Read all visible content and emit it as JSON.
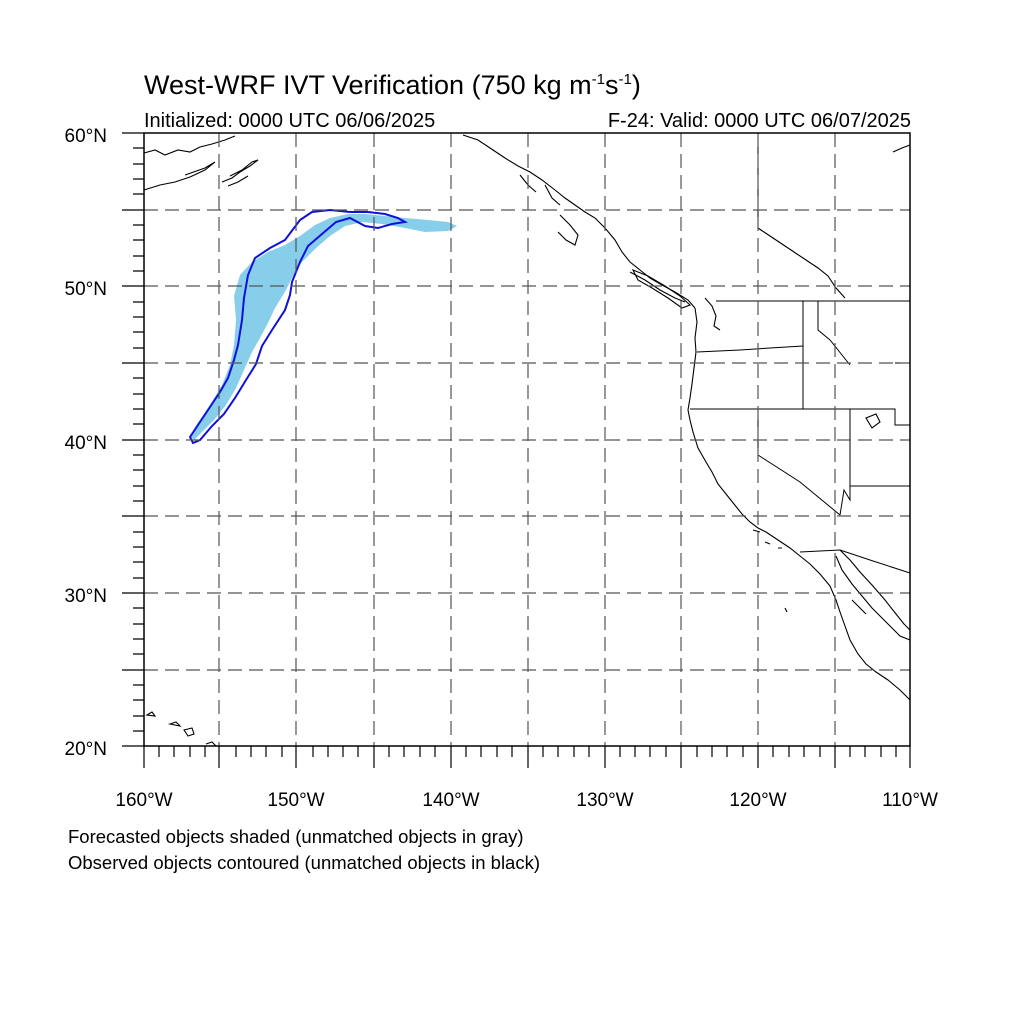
{
  "title": {
    "main": "West-WRF IVT Verification (750 kg m",
    "exp1": "-1",
    "mid": "s",
    "exp2": "-1",
    "end": ")"
  },
  "subtitle_left": "Initialized: 0000 UTC 06/06/2025",
  "subtitle_right": "F-24: Valid: 0000 UTC 06/07/2025",
  "captions": [
    "Forecasted objects shaded (unmatched objects in gray)",
    "Observed objects contoured (unmatched objects in black)"
  ],
  "map": {
    "lon_range": [
      -160,
      -110
    ],
    "lat_range": [
      20,
      60
    ],
    "lat_tick_labels": [
      "60°N",
      "50°N",
      "40°N",
      "30°N",
      "20°N"
    ],
    "lon_tick_labels": [
      "160°W",
      "150°W",
      "140°W",
      "130°W",
      "120°W",
      "110°W"
    ],
    "gridlines": "dashed every 5°",
    "forecast_object_color": "#87ceeb",
    "observed_contour_color": "#1010dd",
    "coastline_color": "#000000"
  }
}
